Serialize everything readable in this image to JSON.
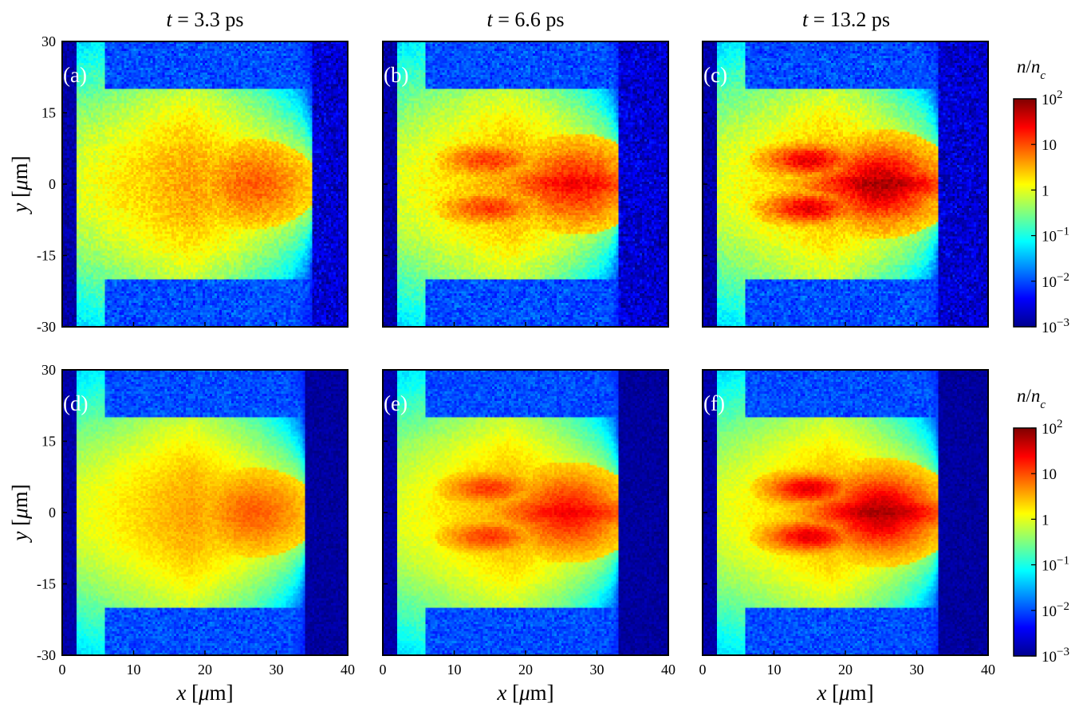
{
  "figure": {
    "column_titles": [
      "t = 3.3 ps",
      "t = 6.6 ps",
      "t = 13.2 ps"
    ],
    "colorbar": {
      "label": "n/n_c",
      "scale": "log",
      "range": [
        0.001,
        100
      ],
      "ticks": [
        "10^2",
        "10",
        "1",
        "10^-1",
        "10^-2",
        "10^-3"
      ],
      "colormap": "jet",
      "colors": [
        "#00008f",
        "#0000ff",
        "#00ffff",
        "#ffff00",
        "#ff0000",
        "#800000"
      ]
    }
  },
  "chart_data": [
    {
      "type": "heatmap",
      "panel": "(a)",
      "title": "t = 3.3 ps",
      "xlabel": "",
      "ylabel": "y [μm]",
      "xlim": [
        0,
        40
      ],
      "ylim": [
        -30,
        30
      ],
      "yticks": [
        "30",
        "15",
        "0",
        "-15",
        "-30"
      ],
      "xticks": [],
      "peak_x": 27,
      "peak_log10_density": 0.8,
      "front_x": 35,
      "density_unit": "n/n_c"
    },
    {
      "type": "heatmap",
      "panel": "(b)",
      "title": "t = 6.6 ps",
      "xlabel": "",
      "ylabel": "",
      "xlim": [
        0,
        40
      ],
      "ylim": [
        -30,
        30
      ],
      "yticks": [],
      "xticks": [],
      "peak_x": 27,
      "peak_log10_density": 1.2,
      "front_x": 33,
      "density_unit": "n/n_c"
    },
    {
      "type": "heatmap",
      "panel": "(c)",
      "title": "t = 13.2 ps",
      "xlabel": "",
      "ylabel": "",
      "xlim": [
        0,
        40
      ],
      "ylim": [
        -30,
        30
      ],
      "yticks": [],
      "xticks": [],
      "peak_x": 25,
      "peak_log10_density": 1.6,
      "front_x": 33,
      "density_unit": "n/n_c"
    },
    {
      "type": "heatmap",
      "panel": "(d)",
      "title": "",
      "xlabel": "x [μm]",
      "ylabel": "y [μm]",
      "xlim": [
        0,
        40
      ],
      "ylim": [
        -30,
        30
      ],
      "yticks": [
        "30",
        "15",
        "0",
        "-15",
        "-30"
      ],
      "xticks": [
        "0",
        "10",
        "20",
        "30",
        "40"
      ],
      "peak_x": 27,
      "peak_log10_density": 0.8,
      "front_x": 34,
      "density_unit": "n/n_c"
    },
    {
      "type": "heatmap",
      "panel": "(e)",
      "title": "",
      "xlabel": "x [μm]",
      "ylabel": "",
      "xlim": [
        0,
        40
      ],
      "ylim": [
        -30,
        30
      ],
      "yticks": [],
      "xticks": [
        "0",
        "10",
        "20",
        "30",
        "40"
      ],
      "peak_x": 26,
      "peak_log10_density": 1.2,
      "front_x": 33,
      "density_unit": "n/n_c"
    },
    {
      "type": "heatmap",
      "panel": "(f)",
      "title": "",
      "xlabel": "x [μm]",
      "ylabel": "",
      "xlim": [
        0,
        40
      ],
      "ylim": [
        -30,
        30
      ],
      "yticks": [],
      "xticks": [
        "0",
        "10",
        "20",
        "30",
        "40"
      ],
      "peak_x": 25,
      "peak_log10_density": 1.6,
      "front_x": 33,
      "density_unit": "n/n_c"
    }
  ]
}
